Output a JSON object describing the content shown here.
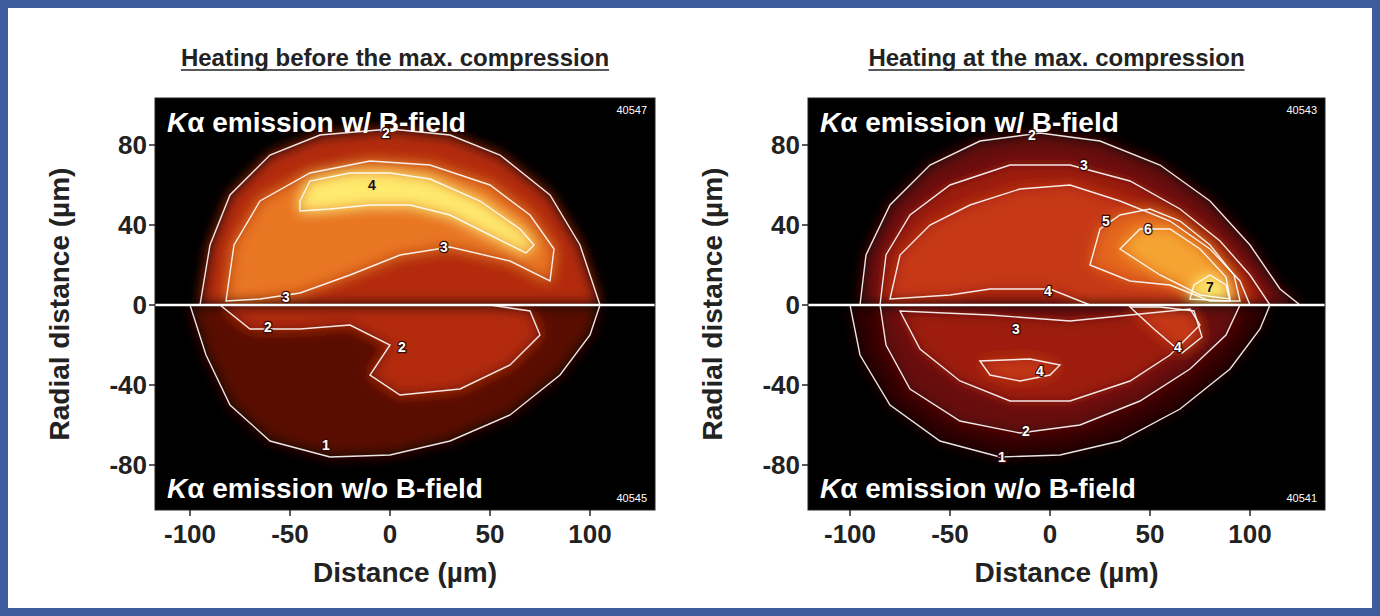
{
  "chart_data": [
    {
      "type": "contour",
      "title": "Heating before the max. compression",
      "xlabel": "Distance (µm)",
      "ylabel": "Radial distance (µm)",
      "xlim": [
        -117.5,
        132.5
      ],
      "ylim": [
        -102.5,
        103.5
      ],
      "xticks": [
        -100,
        -50,
        0,
        50,
        100
      ],
      "yticks": [
        -80,
        -40,
        0,
        40,
        80
      ],
      "regions": [
        {
          "label": "Kα emission w/ B-field",
          "shot": "40547",
          "contours": [
            {
              "level": 2,
              "x": [
                -95,
                -90,
                -80,
                -60,
                -35,
                0,
                30,
                55,
                80,
                95,
                105
              ],
              "y": [
                0,
                30,
                55,
                75,
                85,
                88,
                85,
                75,
                55,
                30,
                0
              ],
              "label_x": [
                -2
              ],
              "label_y": [
                86
              ]
            },
            {
              "level": 3,
              "x": [
                -82,
                -78,
                -65,
                -40,
                -10,
                20,
                50,
                70,
                82,
                80,
                60,
                30,
                5,
                -20,
                -45,
                -65
              ],
              "y": [
                2,
                30,
                52,
                66,
                72,
                70,
                60,
                45,
                28,
                12,
                22,
                29,
                25,
                15,
                6,
                3
              ],
              "label_x": [
                27,
                -52
              ],
              "label_y": [
                29,
                4
              ]
            },
            {
              "level": 4,
              "x": [
                -45,
                -40,
                -20,
                0,
                20,
                45,
                65,
                72,
                68,
                50,
                30,
                10,
                -10,
                -30,
                -45
              ],
              "y": [
                52,
                62,
                66,
                66,
                63,
                52,
                38,
                30,
                26,
                35,
                45,
                50,
                50,
                48,
                47
              ],
              "label_x": [
                -9
              ],
              "label_y": [
                60
              ]
            }
          ]
        },
        {
          "label": "Kα emission w/o B-field",
          "shot": "40545",
          "contours": [
            {
              "level": 1,
              "x": [
                -100,
                -92,
                -80,
                -60,
                -30,
                0,
                30,
                60,
                85,
                100,
                105
              ],
              "y": [
                0,
                -25,
                -50,
                -68,
                -76,
                -75,
                -68,
                -55,
                -35,
                -15,
                0
              ],
              "label_x": [
                -32
              ],
              "label_y": [
                -70
              ]
            },
            {
              "level": 2,
              "x": [
                -85,
                -70,
                -45,
                -20,
                0,
                -10,
                5,
                35,
                60,
                75,
                70,
                50
              ],
              "y": [
                0,
                -12,
                -12,
                -10,
                -20,
                -35,
                -45,
                -42,
                -30,
                -15,
                -3,
                0
              ],
              "label_x": [
                -61,
                6
              ],
              "label_y": [
                -11,
                -21
              ]
            }
          ]
        }
      ]
    },
    {
      "type": "contour",
      "title": "Heating at the max. compression",
      "xlabel": "Distance (µm)",
      "ylabel": "Radial distance (µm)",
      "xlim": [
        -121,
        137.5
      ],
      "ylim": [
        -102.5,
        103.5
      ],
      "xticks": [
        -100,
        -50,
        0,
        50,
        100
      ],
      "yticks": [
        -80,
        -40,
        0,
        40,
        80
      ],
      "regions": [
        {
          "label": "Kα emission w/ B-field",
          "shot": "40543",
          "contours": [
            {
              "level": 2,
              "x": [
                -95,
                -92,
                -80,
                -60,
                -35,
                -5,
                25,
                55,
                80,
                100,
                115,
                125
              ],
              "y": [
                0,
                25,
                50,
                70,
                82,
                86,
                82,
                70,
                52,
                30,
                8,
                0
              ],
              "label_x": [
                -9
              ],
              "label_y": [
                85
              ]
            },
            {
              "level": 3,
              "x": [
                -85,
                -82,
                -70,
                -50,
                -20,
                10,
                40,
                65,
                85,
                100,
                110
              ],
              "y": [
                0,
                25,
                45,
                60,
                70,
                70,
                62,
                48,
                32,
                15,
                0
              ],
              "label_x": [
                17
              ],
              "label_y": [
                70
              ]
            },
            {
              "level": 4,
              "x": [
                -80,
                -75,
                -60,
                -40,
                -15,
                10,
                35,
                60,
                80,
                95,
                100,
                20,
                0,
                -30,
                -50
              ],
              "y": [
                3,
                25,
                40,
                50,
                58,
                60,
                52,
                42,
                28,
                12,
                0,
                0,
                8,
                8,
                5
              ],
              "label_x": [
                -1
              ],
              "label_y": [
                7
              ]
            },
            {
              "level": 5,
              "x": [
                20,
                25,
                35,
                50,
                65,
                80,
                92,
                95,
                80,
                60,
                40
              ],
              "y": [
                20,
                38,
                45,
                48,
                42,
                30,
                15,
                2,
                2,
                10,
                12
              ],
              "label_x": [
                28
              ],
              "label_y": [
                42
              ]
            },
            {
              "level": 6,
              "x": [
                35,
                45,
                60,
                75,
                88,
                90,
                75,
                55
              ],
              "y": [
                28,
                38,
                38,
                28,
                14,
                3,
                5,
                15
              ],
              "label_x": [
                49
              ],
              "label_y": [
                38
              ]
            },
            {
              "level": 7,
              "x": [
                70,
                72,
                80,
                88,
                90
              ],
              "y": [
                3,
                10,
                15,
                10,
                2
              ],
              "label_x": [
                80
              ],
              "label_y": [
                9
              ]
            }
          ]
        },
        {
          "label": "Kα emission w/o B-field",
          "shot": "40541",
          "contours": [
            {
              "level": 1,
              "x": [
                -100,
                -95,
                -80,
                -55,
                -25,
                5,
                35,
                65,
                90,
                105,
                110
              ],
              "y": [
                0,
                -25,
                -50,
                -68,
                -76,
                -75,
                -68,
                -52,
                -32,
                -12,
                0
              ],
              "label_x": [
                -24
              ],
              "label_y": [
                -76
              ]
            },
            {
              "level": 2,
              "x": [
                -85,
                -82,
                -70,
                -45,
                -15,
                15,
                45,
                70,
                88,
                95
              ],
              "y": [
                0,
                -20,
                -42,
                -58,
                -64,
                -60,
                -48,
                -32,
                -15,
                0
              ],
              "label_x": [
                -12
              ],
              "label_y": [
                -63
              ]
            },
            {
              "level": 3,
              "x": [
                -75,
                -65,
                -45,
                -20,
                10,
                40,
                60,
                75,
                70,
                40,
                10,
                -30
              ],
              "y": [
                -3,
                -22,
                -38,
                -48,
                -48,
                -38,
                -25,
                -10,
                -2,
                -5,
                -8,
                -5
              ],
              "label_x": [
                -17
              ],
              "label_y": [
                -12
              ]
            },
            {
              "level": 4,
              "x": [
                -35,
                -30,
                -15,
                0,
                5,
                -10
              ],
              "y": [
                -28,
                -35,
                -38,
                -35,
                -30,
                -27
              ],
              "label_x": [
                -5
              ],
              "label_y": [
                -33
              ]
            },
            {
              "level": 4,
              "x": [
                40,
                52,
                66,
                76,
                72,
                55
              ],
              "y": [
                -1,
                -12,
                -24,
                -16,
                -3,
                -1
              ],
              "label_x": [
                64
              ],
              "label_y": [
                -21
              ]
            }
          ]
        }
      ]
    }
  ]
}
